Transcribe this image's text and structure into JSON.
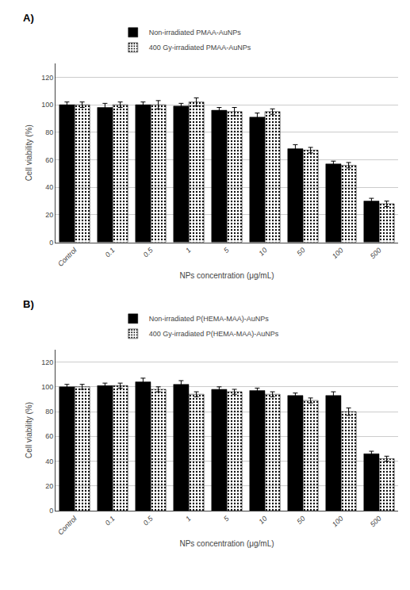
{
  "chart_data": [
    {
      "type": "bar",
      "title": "A)",
      "xlabel": "NPs concentration (μg/mL)",
      "ylabel": "Cell viability (%)",
      "categories": [
        "Control",
        "0.1",
        "0.5",
        "1",
        "5",
        "10",
        "50",
        "100",
        "500"
      ],
      "series": [
        {
          "name": "Non-irradiated PMAA-AuNPs",
          "color": "#000000",
          "values": [
            100,
            98,
            100,
            99,
            96,
            91,
            68,
            57,
            30
          ],
          "errors": [
            2,
            3,
            2,
            2,
            2,
            3,
            3,
            2,
            2
          ]
        },
        {
          "name": "400 Gy-irradiated PMAA-AuNPs",
          "color": "#b0b0b0",
          "values": [
            100,
            100,
            100,
            102,
            95,
            95,
            67,
            56,
            28
          ],
          "errors": [
            2,
            2,
            3,
            3,
            3,
            2,
            2,
            2,
            2
          ]
        }
      ],
      "ylim": [
        0,
        130
      ],
      "yticks": [
        0,
        20,
        40,
        60,
        80,
        100,
        120
      ],
      "grid": true,
      "legend": "top"
    },
    {
      "type": "bar",
      "title": "B)",
      "xlabel": "NPs concentration (μg/mL)",
      "ylabel": "Cell viability (%)",
      "categories": [
        "Control",
        "0.1",
        "0.5",
        "1",
        "5",
        "10",
        "50",
        "100",
        "500"
      ],
      "series": [
        {
          "name": "Non-irradiated P(HEMA-MAA)-AuNPs",
          "color": "#000000",
          "values": [
            100,
            101,
            104,
            102,
            98,
            97,
            93,
            93,
            46
          ],
          "errors": [
            2,
            2,
            3,
            3,
            2,
            2,
            2,
            3,
            2
          ]
        },
        {
          "name": "400 Gy-irradiated P(HEMA-MAA)-AuNPs",
          "color": "#b0b0b0",
          "values": [
            100,
            101,
            98,
            94,
            96,
            94,
            89,
            80,
            42
          ],
          "errors": [
            2,
            2,
            2,
            2,
            2,
            2,
            2,
            3,
            2
          ]
        }
      ],
      "ylim": [
        0,
        130
      ],
      "yticks": [
        0,
        20,
        40,
        60,
        80,
        100,
        120
      ],
      "grid": true,
      "legend": "top"
    }
  ]
}
